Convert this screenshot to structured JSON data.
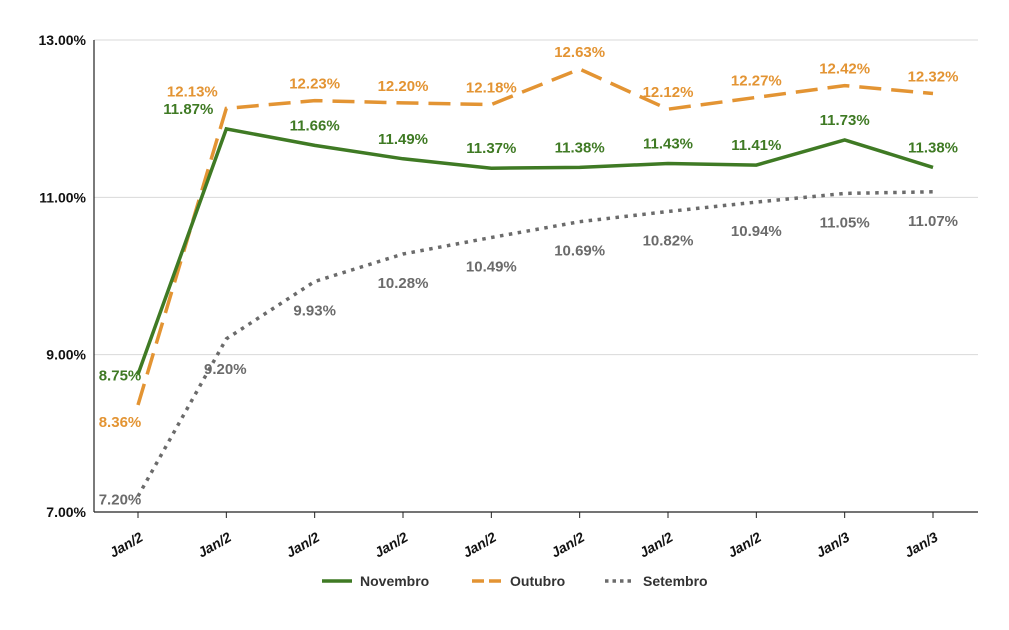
{
  "chart_data": {
    "type": "line",
    "x": [
      "Jan/2",
      "Jan/2",
      "Jan/2",
      "Jan/2",
      "Jan/2",
      "Jan/2",
      "Jan/2",
      "Jan/2",
      "Jan/3",
      "Jan/3"
    ],
    "y_ticks": [
      "13.00%",
      "11.00%",
      "9.00%",
      "7.00%"
    ],
    "ylim": [
      7,
      13
    ],
    "grid": "horizontal",
    "legend_position": "bottom",
    "series": [
      {
        "name": "Novembro",
        "color": "#3f7a24",
        "line_style": "solid",
        "values": [
          8.75,
          11.87,
          11.66,
          11.49,
          11.37,
          11.38,
          11.43,
          11.41,
          11.73,
          11.38
        ],
        "labels": [
          "8.75%",
          "11.87%",
          "11.66%",
          "11.49%",
          "11.37%",
          "11.38%",
          "11.43%",
          "11.41%",
          "11.73%",
          "11.38%"
        ]
      },
      {
        "name": "Outubro",
        "color": "#e39433",
        "line_style": "dashed",
        "values": [
          8.36,
          12.13,
          12.23,
          12.2,
          12.18,
          12.63,
          12.12,
          12.27,
          12.42,
          12.32
        ],
        "labels": [
          "8.36%",
          "12.13%",
          "12.23%",
          "12.20%",
          "12.18%",
          "12.63%",
          "12.12%",
          "12.27%",
          "12.42%",
          "12.32%"
        ]
      },
      {
        "name": "Setembro",
        "color": "#6b6b6b",
        "line_style": "dotted",
        "values": [
          7.2,
          9.2,
          9.93,
          10.28,
          10.49,
          10.69,
          10.82,
          10.94,
          11.05,
          11.07
        ],
        "labels": [
          "7.20%",
          "9.20%",
          "9.93%",
          "10.28%",
          "10.49%",
          "10.69%",
          "10.82%",
          "10.94%",
          "11.05%",
          "11.07%"
        ]
      }
    ]
  }
}
